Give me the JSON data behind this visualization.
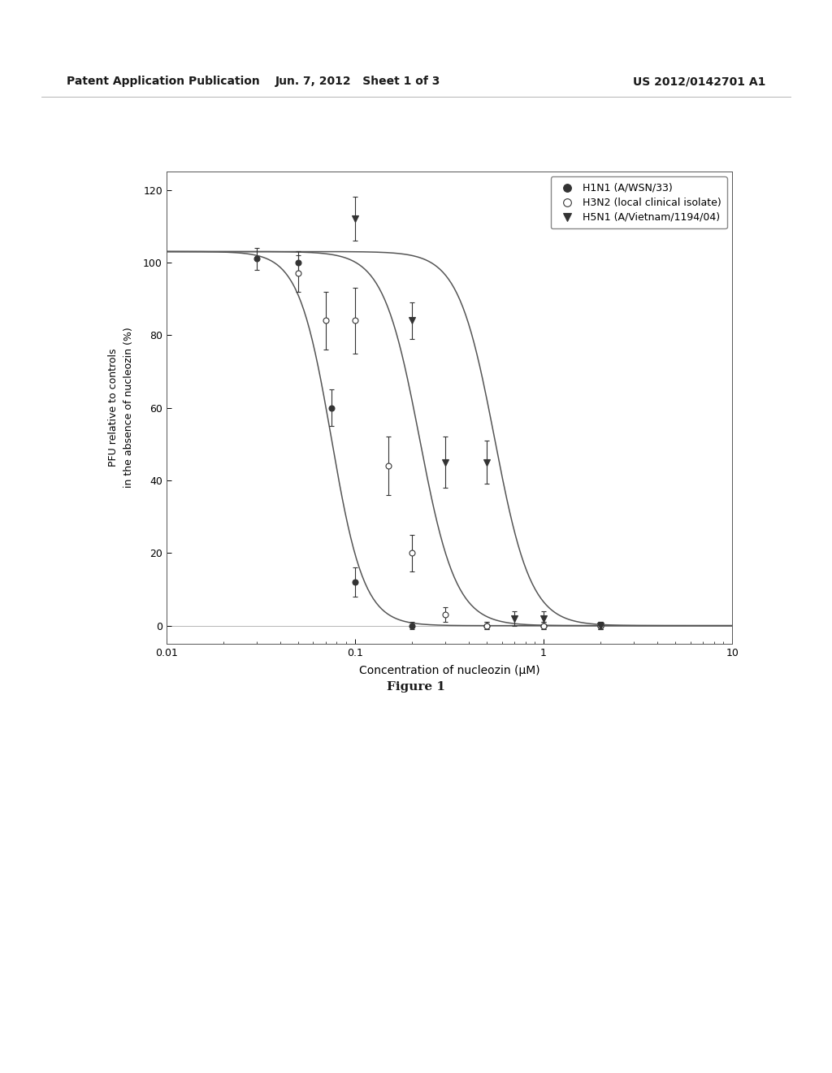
{
  "header_left": "Patent Application Publication",
  "header_center": "Jun. 7, 2012   Sheet 1 of 3",
  "header_right": "US 2012/0142701 A1",
  "figure_label": "Figure 1",
  "xlabel": "Concentration of nucleozin (μM)",
  "ylabel": "PFU relative to controls\nin the absence of nucleozin (%)",
  "xmin": 0.01,
  "xmax": 10,
  "ymin": -5,
  "ymax": 125,
  "yticks": [
    0,
    20,
    40,
    60,
    80,
    100,
    120
  ],
  "series": [
    {
      "label": "H1N1 (A/WSN/33)",
      "marker": "o",
      "marker_filled": true,
      "ec50": 0.075,
      "hill": 5.0,
      "top": 103,
      "x_data": [
        0.03,
        0.05,
        0.075,
        0.1,
        0.2,
        0.5,
        1.0,
        2.0
      ],
      "y_data": [
        101,
        100,
        60,
        12,
        0,
        0,
        0,
        0
      ],
      "y_err": [
        3,
        3,
        5,
        4,
        1,
        1,
        1,
        1
      ]
    },
    {
      "label": "H3N2 (local clinical isolate)",
      "marker": "o",
      "marker_filled": false,
      "ec50": 0.22,
      "hill": 4.5,
      "top": 103,
      "x_data": [
        0.05,
        0.07,
        0.1,
        0.15,
        0.2,
        0.3,
        0.5,
        1.0,
        2.0
      ],
      "y_data": [
        97,
        84,
        84,
        44,
        20,
        3,
        0,
        0,
        0
      ],
      "y_err": [
        5,
        8,
        9,
        8,
        5,
        2,
        1,
        1,
        1
      ]
    },
    {
      "label": "H5N1 (A/Vietnam/1194/04)",
      "marker": "v",
      "marker_filled": true,
      "ec50": 0.55,
      "hill": 4.5,
      "top": 103,
      "x_data": [
        0.1,
        0.2,
        0.3,
        0.5,
        0.7,
        1.0,
        2.0
      ],
      "y_data": [
        112,
        84,
        45,
        45,
        2,
        2,
        0
      ],
      "y_err": [
        6,
        5,
        7,
        6,
        2,
        2,
        1
      ]
    }
  ],
  "background_color": "#ffffff",
  "text_color": "#1a1a1a",
  "line_color": "#555555",
  "plot_bg": "#ffffff",
  "header_fontsize": 10,
  "axis_fontsize": 9,
  "tick_fontsize": 9,
  "legend_fontsize": 9,
  "fig_label_fontsize": 11
}
